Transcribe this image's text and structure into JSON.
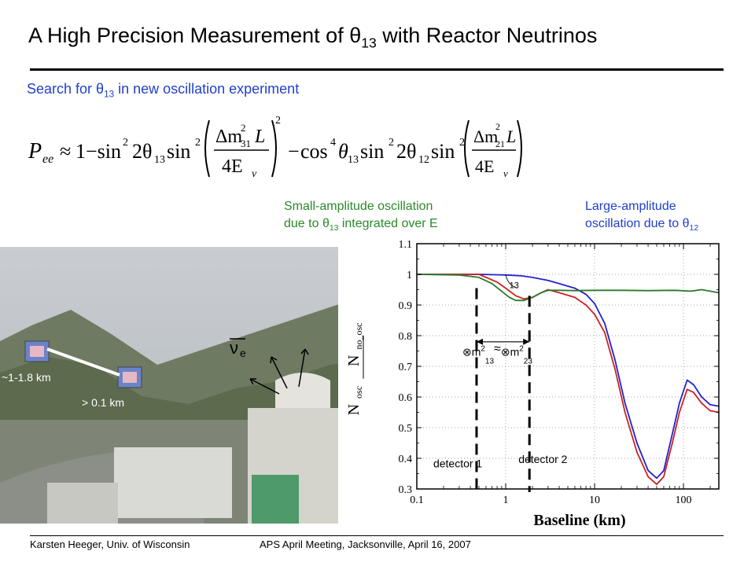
{
  "slide": {
    "title_pre": "A High Precision Measurement of ",
    "title_sym": "θ",
    "title_sub": "13",
    "title_post": " with Reactor Neutrinos",
    "subtitle_pre": "Search for ",
    "subtitle_sym": "θ",
    "subtitle_sub": "13",
    "subtitle_post": " in new oscillation experiment"
  },
  "formula": {
    "lhs": "P",
    "lhs_sub": "ee",
    "approx": "≈",
    "one_minus": "1−sin",
    "sq": "2",
    "two_theta": "2θ",
    "theta13": "13",
    "theta12": "12",
    "cos": "cos",
    "four": "4",
    "minus": "−",
    "sin": "sin",
    "delta_m": "Δm",
    "m31": "31",
    "m21": "21",
    "L": "L",
    "four_E": "4E",
    "nu": "ν"
  },
  "notes": {
    "small_line1": "Small-amplitude oscillation",
    "small_line2_pre": "due to ",
    "small_sym": "θ",
    "small_sub": "13",
    "small_line2_post": " integrated over E",
    "large_line1": "Large-amplitude",
    "large_line2_pre": "oscillation due to ",
    "large_sym": "θ",
    "large_sub": "12"
  },
  "photo": {
    "distance_far": "~1-1.8 km",
    "distance_near": "> 0.1 km",
    "nu_label": "ν",
    "nu_sub": "e"
  },
  "footer": {
    "author": "Karsten Heeger, Univ. of Wisconsin",
    "meeting": "APS April Meeting, Jacksonville, April 16, 2007"
  },
  "chart_data": {
    "type": "line",
    "xlabel": "Baseline (km)",
    "ylabel_num": "N",
    "ylabel_num_sub": "osc",
    "ylabel_den": "N",
    "ylabel_den_sub": "no_osc",
    "xscale": "log",
    "xlim": [
      0.1,
      250
    ],
    "ylim": [
      0.3,
      1.1
    ],
    "x_ticks": [
      0.1,
      1,
      10,
      100
    ],
    "x_tick_labels": [
      "0.1",
      "1",
      "10",
      "100"
    ],
    "y_ticks": [
      0.3,
      0.4,
      0.5,
      0.6,
      0.7,
      0.8,
      0.9,
      1,
      1.1
    ],
    "y_tick_labels": [
      "0.3",
      "0.4",
      "0.5",
      "0.6",
      "0.7",
      "0.8",
      "0.9",
      "1",
      "1.1"
    ],
    "series": [
      {
        "color": "#2222cc",
        "x": [
          0.1,
          0.5,
          1,
          1.5,
          2,
          3,
          4,
          6,
          8,
          10,
          13,
          17,
          22,
          30,
          40,
          50,
          60,
          75,
          90,
          110,
          130,
          160,
          200,
          250
        ],
        "y": [
          1.0,
          1.0,
          0.998,
          0.995,
          0.99,
          0.98,
          0.97,
          0.955,
          0.935,
          0.905,
          0.84,
          0.72,
          0.58,
          0.45,
          0.36,
          0.335,
          0.36,
          0.48,
          0.58,
          0.655,
          0.64,
          0.6,
          0.575,
          0.57
        ]
      },
      {
        "color": "#cc2222",
        "x": [
          0.1,
          0.5,
          0.8,
          1,
          1.3,
          1.6,
          2,
          2.5,
          3,
          4,
          6,
          8,
          10,
          13,
          17,
          22,
          30,
          40,
          50,
          60,
          75,
          90,
          110,
          130,
          160,
          200,
          250
        ],
        "y": [
          1.0,
          1.0,
          0.975,
          0.955,
          0.93,
          0.92,
          0.925,
          0.94,
          0.95,
          0.94,
          0.925,
          0.9,
          0.87,
          0.81,
          0.69,
          0.55,
          0.42,
          0.34,
          0.315,
          0.34,
          0.45,
          0.55,
          0.625,
          0.615,
          0.58,
          0.555,
          0.55
        ]
      },
      {
        "color": "#2a7a2a",
        "x": [
          0.1,
          0.3,
          0.5,
          0.7,
          0.9,
          1.1,
          1.3,
          1.6,
          2,
          2.5,
          3,
          4,
          6,
          10,
          20,
          40,
          80,
          120,
          160,
          200,
          250
        ],
        "y": [
          1.0,
          0.998,
          0.99,
          0.97,
          0.945,
          0.925,
          0.915,
          0.915,
          0.925,
          0.94,
          0.948,
          0.948,
          0.947,
          0.948,
          0.948,
          0.947,
          0.948,
          0.945,
          0.95,
          0.945,
          0.94
        ]
      }
    ],
    "annotations": {
      "theta_label": "13",
      "dm_label_a": "m",
      "dm_sup": "2",
      "dm_sub_a": "13",
      "dm_approx": "≈",
      "dm_label_b": "m",
      "dm_sub_b": "23",
      "dm_symbol": "⊗",
      "detector1": "detector 1",
      "detector2": "detector 2",
      "detector1_x": 0.47,
      "detector2_x": 1.85
    }
  }
}
